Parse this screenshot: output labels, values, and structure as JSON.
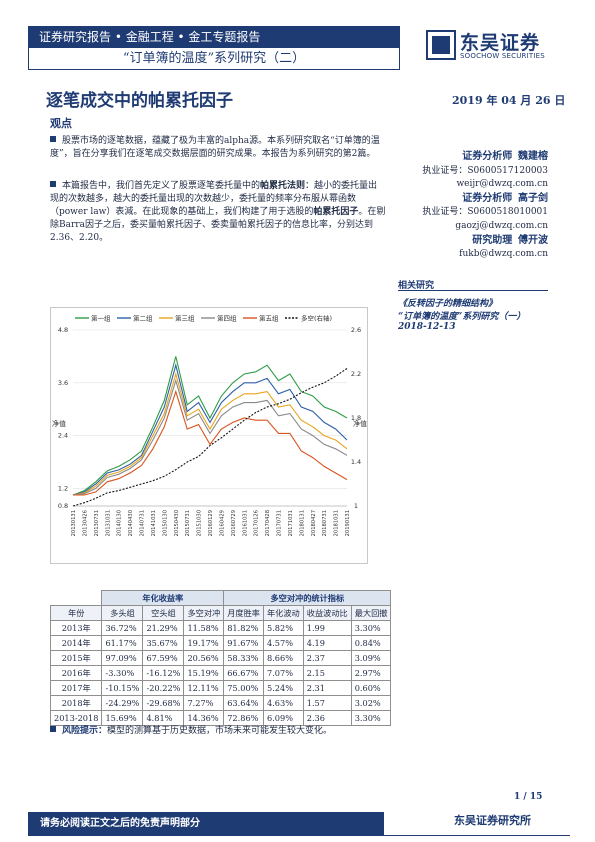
{
  "header": {
    "category": "证券研究报告 • 金融工程 • 金工专题报告",
    "series_title": "“订单簿的温度”系列研究（二）",
    "logo_cn": "东吴证券",
    "logo_en": "SOOCHOW SECURITIES"
  },
  "title": "逐笔成交中的帕累托因子",
  "date": "2019 年 04 月 26 日",
  "section_label": "观点",
  "paragraphs": [
    {
      "text": "股票市场的逐笔数据，蕴藏了极为丰富的alpha源。本系列研究取名“订单簿的温度”，旨在分享我们在逐笔成交数据层面的研究成果。本报告为系列研究的第2篇。"
    },
    {
      "text_a": "本篇报告中，我们首先定义了股票逐笔委托量中的",
      "bold_a": "帕累托法则",
      "text_b": "：越小的委托量出现的次数越多，越大的委托量出现的次数越少，委托量的频率分布服从幂函数（power law）表減。在此现象的基础上，我们构建了用于选股的",
      "bold_b": "帕累托因子",
      "text_c": "。在剔除Barra因子之后，委买量帕累托因子、委卖量帕累托因子的信息比率，分别达到2.36、2.20。"
    }
  ],
  "analysts": [
    {
      "role": "证券分析师",
      "name": "魏建榕",
      "license": "执业证号：S0600517120003",
      "email": "weijr@dwzq.com.cn"
    },
    {
      "role": "证券分析师",
      "name": "高子剑",
      "license": "执业证号：S0600518010001",
      "email": "gaozj@dwzq.com.cn"
    },
    {
      "role": "研究助理",
      "name": "傅开波",
      "license": "",
      "email": "fukb@dwzq.com.cn"
    }
  ],
  "related": {
    "heading": "相关研究",
    "items": [
      "《反转因子的精细结构》",
      "“订单簿的温度”系列研究（一）"
    ],
    "item_date": "2018-12-13"
  },
  "chart_data": {
    "type": "line",
    "title": "",
    "legend": [
      "第一组",
      "第二组",
      "第三组",
      "第四组",
      "第五组",
      "多空(右轴)"
    ],
    "ylabel_left": "净值",
    "ylabel_right": "净值",
    "ylim_left": [
      0.8,
      4.8
    ],
    "yticks_left": [
      "0.8",
      "1.2",
      "2.4",
      "3.6",
      "4.8"
    ],
    "ylim_right": [
      1.0,
      2.6
    ],
    "yticks_right": [
      "1",
      "1.4",
      "1.8",
      "2.2",
      "2.6"
    ],
    "x": [
      "20130131",
      "20130430",
      "20130731",
      "20131031",
      "20140131",
      "20140430",
      "20140731",
      "20141031",
      "20150131",
      "20150430",
      "20150731",
      "20151031",
      "20160131",
      "20160430",
      "20160731",
      "20161031",
      "20170131",
      "20170430",
      "20170731",
      "20171031",
      "20180131",
      "20180430",
      "20180731",
      "20181031",
      "20190131"
    ],
    "xtick_labels": [
      "20130131",
      "20130426",
      "20130731",
      "20131031",
      "20140130",
      "20140430",
      "20140731",
      "20141031",
      "20150130",
      "20150430",
      "20150731",
      "20151030",
      "20160129",
      "20160429",
      "20160729",
      "20161031",
      "20170126",
      "20170428",
      "20170731",
      "20171031",
      "20180131",
      "20180427",
      "20180731",
      "20181031",
      "20190131"
    ],
    "series": [
      {
        "name": "第一组",
        "color": "#2e9d45",
        "axis": "left",
        "values": [
          1.05,
          1.15,
          1.35,
          1.6,
          1.7,
          1.85,
          2.05,
          2.6,
          3.2,
          4.2,
          3.1,
          3.3,
          2.8,
          3.3,
          3.6,
          3.8,
          3.85,
          4.0,
          3.65,
          3.8,
          3.4,
          3.3,
          3.05,
          2.95,
          2.8
        ]
      },
      {
        "name": "第二组",
        "color": "#2f5fa8",
        "axis": "left",
        "values": [
          1.05,
          1.12,
          1.3,
          1.55,
          1.62,
          1.75,
          1.95,
          2.5,
          3.05,
          4.0,
          2.95,
          3.15,
          2.7,
          3.15,
          3.4,
          3.6,
          3.6,
          3.7,
          3.35,
          3.45,
          3.05,
          2.95,
          2.7,
          2.55,
          2.3
        ]
      },
      {
        "name": "第三组",
        "color": "#e8a41c",
        "axis": "left",
        "values": [
          1.05,
          1.1,
          1.25,
          1.5,
          1.57,
          1.7,
          1.9,
          2.4,
          2.9,
          3.8,
          2.85,
          3.0,
          2.55,
          3.0,
          3.2,
          3.35,
          3.35,
          3.4,
          3.05,
          3.1,
          2.75,
          2.6,
          2.4,
          2.3,
          2.1
        ]
      },
      {
        "name": "第四组",
        "color": "#8a8a8a",
        "axis": "left",
        "values": [
          1.05,
          1.08,
          1.2,
          1.45,
          1.52,
          1.65,
          1.85,
          2.3,
          2.8,
          3.65,
          2.75,
          2.9,
          2.45,
          2.85,
          3.05,
          3.15,
          3.15,
          3.2,
          2.85,
          2.9,
          2.55,
          2.4,
          2.2,
          2.1,
          1.95
        ]
      },
      {
        "name": "第五组",
        "color": "#d9541e",
        "axis": "left",
        "values": [
          1.05,
          1.05,
          1.12,
          1.35,
          1.42,
          1.55,
          1.72,
          2.1,
          2.6,
          3.4,
          2.55,
          2.65,
          2.2,
          2.55,
          2.7,
          2.8,
          2.75,
          2.75,
          2.45,
          2.45,
          2.05,
          1.9,
          1.7,
          1.55,
          1.4
        ]
      },
      {
        "name": "多空(右轴)",
        "color": "#111111",
        "axis": "right",
        "values": [
          1.0,
          1.03,
          1.07,
          1.12,
          1.14,
          1.17,
          1.2,
          1.23,
          1.27,
          1.33,
          1.4,
          1.45,
          1.55,
          1.62,
          1.7,
          1.78,
          1.85,
          1.9,
          1.93,
          1.97,
          2.03,
          2.08,
          2.12,
          2.18,
          2.25
        ]
      }
    ]
  },
  "table": {
    "group_headers": [
      "年化收益率",
      "多空对冲的统计指标"
    ],
    "columns": [
      "年份",
      "多头组",
      "空头组",
      "多空对冲",
      "月度胜率",
      "年化波动",
      "收益波动比",
      "最大回撤"
    ],
    "rows": [
      [
        "2013年",
        "36.72%",
        "21.29%",
        "11.58%",
        "81.82%",
        "5.82%",
        "1.99",
        "3.30%"
      ],
      [
        "2014年",
        "61.17%",
        "35.67%",
        "19.17%",
        "91.67%",
        "4.57%",
        "4.19",
        "0.84%"
      ],
      [
        "2015年",
        "97.09%",
        "67.59%",
        "20.56%",
        "58.33%",
        "8.66%",
        "2.37",
        "3.09%"
      ],
      [
        "2016年",
        "-3.30%",
        "-16.12%",
        "15.19%",
        "66.67%",
        "7.07%",
        "2.15",
        "2.97%"
      ],
      [
        "2017年",
        "-10.15%",
        "-20.22%",
        "12.11%",
        "75.00%",
        "5.24%",
        "2.31",
        "0.60%"
      ],
      [
        "2018年",
        "-24.29%",
        "-29.68%",
        "7.27%",
        "63.64%",
        "4.63%",
        "1.57",
        "3.02%"
      ],
      [
        "2013-2018",
        "15.69%",
        "4.81%",
        "14.36%",
        "72.86%",
        "6.09%",
        "2.36",
        "3.30%"
      ]
    ]
  },
  "risk": {
    "label": "风险提示：",
    "text": "模型的测算基于历史数据，市场未来可能发生较大变化。"
  },
  "page_number": "1 / 15",
  "footer": {
    "disclaimer": "请务必阅读正文之后的免责声明部分",
    "institute": "东吴证券研究所"
  }
}
